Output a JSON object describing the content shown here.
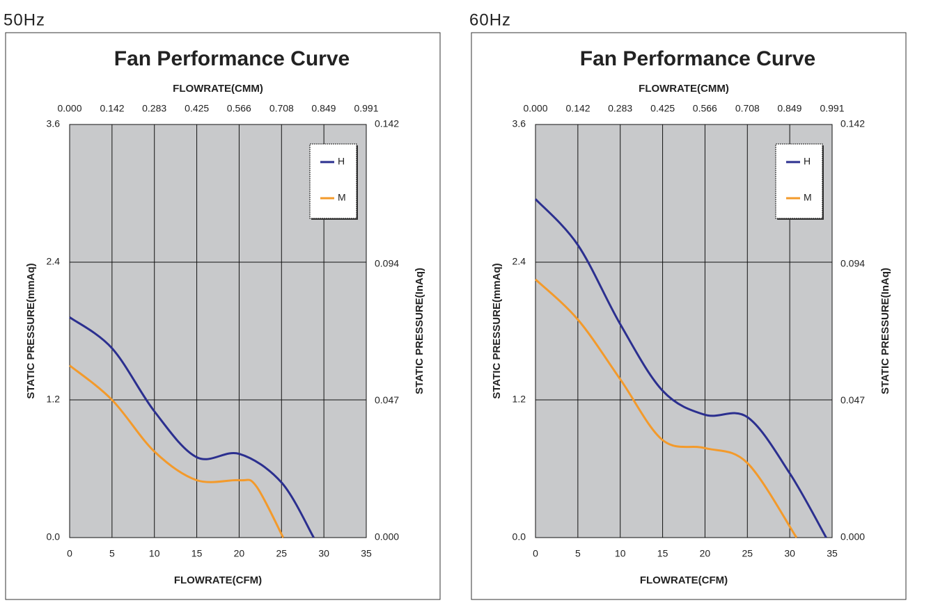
{
  "chart_data": [
    {
      "type": "line",
      "label": "50Hz",
      "title": "Fan Performance Curve",
      "x_label": "FLOWRATE(CFM)",
      "x2_label": "FLOWRATE(CMM)",
      "y_label": "STATIC PRESSURE(mmAq)",
      "y2_label": "STATIC PRESSURE(InAq)",
      "xlim": [
        0,
        35
      ],
      "xticks": [
        0,
        5,
        10,
        15,
        20,
        25,
        30,
        35
      ],
      "x2lim": [
        0,
        0.991
      ],
      "x2ticks": [
        {
          "value": 0,
          "label": "0.000"
        },
        0.142,
        0.283,
        0.425,
        0.566,
        0.708,
        0.849,
        0.991
      ],
      "ylim": [
        0,
        3.6
      ],
      "yticks": [
        {
          "value": 0,
          "label": "0.0"
        },
        1.2,
        2.4,
        3.6
      ],
      "y2lim": [
        0,
        0.142
      ],
      "y2ticks": [
        {
          "value": 0,
          "label": "0.000"
        },
        0.047,
        0.094,
        0.142
      ],
      "grid": true,
      "background": "#c8c9cb",
      "legend": "upper right",
      "series": [
        {
          "name": "H",
          "color": "#2b2f8f",
          "x": [
            0,
            5,
            10,
            15,
            20,
            25,
            28.8
          ],
          "values": [
            1.92,
            1.65,
            1.1,
            0.7,
            0.73,
            0.48,
            0
          ]
        },
        {
          "name": "M",
          "color": "#f39a2b",
          "x": [
            0,
            5,
            10,
            15,
            20,
            22,
            25.2
          ],
          "values": [
            1.5,
            1.2,
            0.75,
            0.5,
            0.5,
            0.45,
            0
          ]
        }
      ]
    },
    {
      "type": "line",
      "label": "60Hz",
      "title": "Fan Performance Curve",
      "x_label": "FLOWRATE(CFM)",
      "x2_label": "FLOWRATE(CMM)",
      "y_label": "STATIC PRESSURE(mmAq)",
      "y2_label": "STATIC PRESSURE(InAq)",
      "xlim": [
        0,
        35
      ],
      "xticks": [
        0,
        5,
        10,
        15,
        20,
        25,
        30,
        35
      ],
      "x2lim": [
        0,
        0.991
      ],
      "x2ticks": [
        {
          "value": 0,
          "label": "0.000"
        },
        0.142,
        0.283,
        0.425,
        0.566,
        0.708,
        0.849,
        0.991
      ],
      "ylim": [
        0,
        3.6
      ],
      "yticks": [
        {
          "value": 0,
          "label": "0.0"
        },
        1.2,
        2.4,
        3.6
      ],
      "y2lim": [
        0,
        0.142
      ],
      "y2ticks": [
        {
          "value": 0,
          "label": "0.000"
        },
        0.047,
        0.094,
        0.142
      ],
      "grid": true,
      "background": "#c8c9cb",
      "legend": "upper right",
      "series": [
        {
          "name": "H",
          "color": "#2b2f8f",
          "x": [
            0,
            5,
            10,
            15,
            20,
            25,
            30,
            34.3
          ],
          "values": [
            2.95,
            2.55,
            1.86,
            1.28,
            1.07,
            1.05,
            0.56,
            0
          ]
        },
        {
          "name": "M",
          "color": "#f39a2b",
          "x": [
            0,
            5,
            10,
            15,
            20,
            25,
            30.8
          ],
          "values": [
            2.25,
            1.9,
            1.38,
            0.85,
            0.78,
            0.65,
            0
          ]
        }
      ]
    }
  ]
}
